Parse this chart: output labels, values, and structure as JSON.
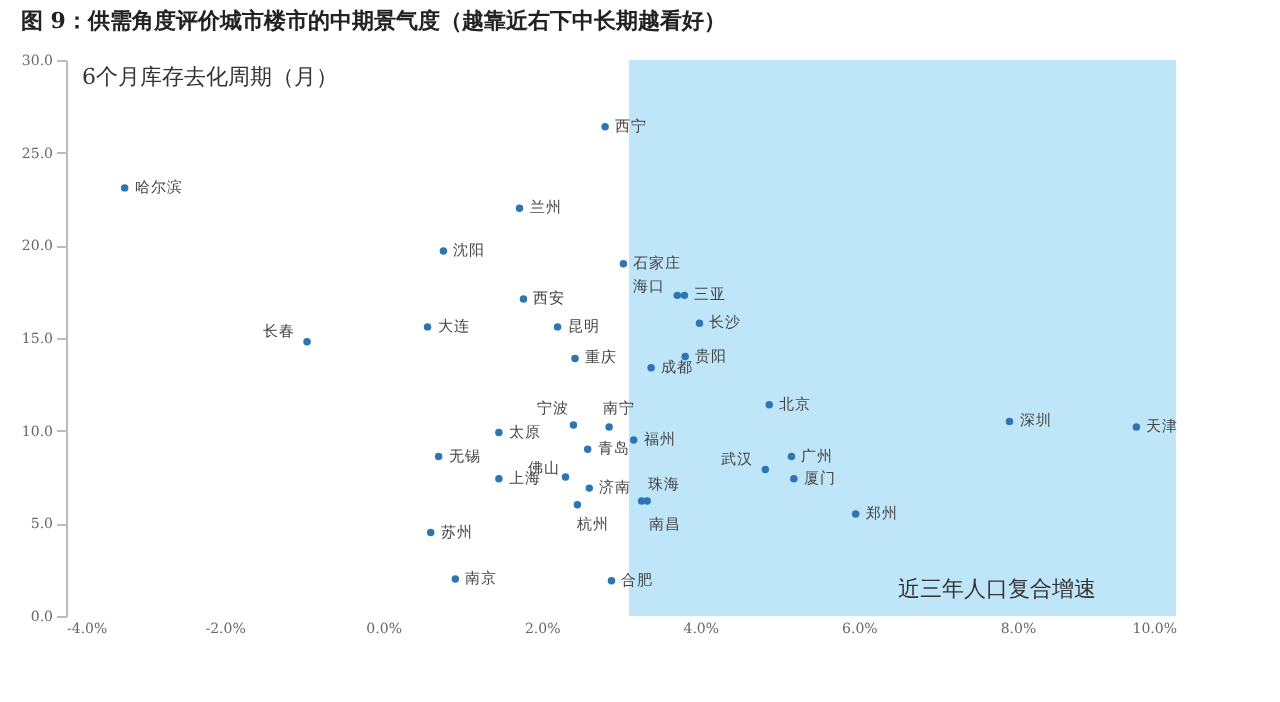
{
  "chart_data": {
    "type": "scatter",
    "title": "图 9：供需角度评价城市楼市的中期景气度（越靠近右下中长期越看好）",
    "xlabel": "近三年人口复合增速",
    "ylabel": "6个月库存去化周期（月）",
    "series": [
      {
        "color": "#2e75b6",
        "x": [
          -3.26,
          -0.96,
          0.56,
          0.76,
          1.72,
          1.77,
          2.2,
          2.42,
          2.8,
          3.03,
          3.71,
          3.8,
          3.99,
          3.81,
          3.38,
          4.87,
          2.4,
          2.85,
          3.16,
          1.46,
          0.7,
          2.58,
          2.3,
          1.46,
          2.6,
          2.45,
          0.6,
          0.91,
          2.88,
          3.26,
          3.33,
          4.82,
          5.15,
          5.18,
          5.96,
          7.9,
          9.5
        ],
        "values": [
          23.1,
          14.8,
          15.6,
          19.7,
          22.0,
          17.1,
          15.6,
          13.9,
          26.4,
          19.0,
          17.3,
          17.3,
          15.8,
          14.0,
          13.4,
          11.4,
          10.3,
          10.2,
          9.5,
          9.9,
          8.6,
          9.0,
          7.5,
          7.4,
          6.9,
          6.0,
          4.5,
          2.0,
          1.9,
          6.2,
          6.2,
          7.9,
          8.6,
          7.4,
          5.5,
          10.5,
          10.2
        ]
      }
    ],
    "annotations": [
      {
        "text": "哈尔滨",
        "x": -3.26,
        "y": 23.1
      },
      {
        "text": "长春",
        "x": -0.96,
        "y": 14.8
      },
      {
        "text": "大连",
        "x": 0.56,
        "y": 15.6
      },
      {
        "text": "沈阳",
        "x": 0.76,
        "y": 19.7
      },
      {
        "text": "兰州",
        "x": 1.72,
        "y": 22.0
      },
      {
        "text": "西安",
        "x": 1.77,
        "y": 17.1
      },
      {
        "text": "昆明",
        "x": 2.2,
        "y": 15.6
      },
      {
        "text": "重庆",
        "x": 2.42,
        "y": 13.9
      },
      {
        "text": "西宁",
        "x": 2.8,
        "y": 26.4
      },
      {
        "text": "石家庄",
        "x": 3.03,
        "y": 19.0
      },
      {
        "text": "海口",
        "x": 3.71,
        "y": 17.3
      },
      {
        "text": "三亚",
        "x": 3.8,
        "y": 17.3
      },
      {
        "text": "长沙",
        "x": 3.99,
        "y": 15.8
      },
      {
        "text": "贵阳",
        "x": 3.81,
        "y": 14.0
      },
      {
        "text": "成都",
        "x": 3.38,
        "y": 13.4
      },
      {
        "text": "北京",
        "x": 4.87,
        "y": 11.4
      },
      {
        "text": "宁波",
        "x": 2.4,
        "y": 10.3
      },
      {
        "text": "南宁",
        "x": 2.85,
        "y": 10.2
      },
      {
        "text": "福州",
        "x": 3.16,
        "y": 9.5
      },
      {
        "text": "太原",
        "x": 1.46,
        "y": 9.9
      },
      {
        "text": "无锡",
        "x": 0.7,
        "y": 8.6
      },
      {
        "text": "青岛",
        "x": 2.58,
        "y": 9.0
      },
      {
        "text": "佛山",
        "x": 2.3,
        "y": 7.5
      },
      {
        "text": "上海",
        "x": 1.46,
        "y": 7.4
      },
      {
        "text": "济南",
        "x": 2.6,
        "y": 6.9
      },
      {
        "text": "杭州",
        "x": 2.45,
        "y": 6.0
      },
      {
        "text": "苏州",
        "x": 0.6,
        "y": 4.5
      },
      {
        "text": "南京",
        "x": 0.91,
        "y": 2.0
      },
      {
        "text": "合肥",
        "x": 2.88,
        "y": 1.9
      },
      {
        "text": "珠海",
        "x": 3.26,
        "y": 6.2
      },
      {
        "text": "南昌",
        "x": 3.33,
        "y": 6.2
      },
      {
        "text": "武汉",
        "x": 4.82,
        "y": 7.9
      },
      {
        "text": "广州",
        "x": 5.15,
        "y": 8.6
      },
      {
        "text": "厦门",
        "x": 5.18,
        "y": 7.4
      },
      {
        "text": "郑州",
        "x": 5.96,
        "y": 5.5
      },
      {
        "text": "深圳",
        "x": 7.9,
        "y": 10.5
      },
      {
        "text": "天津",
        "x": 9.5,
        "y": 10.2
      }
    ],
    "bands": [
      {
        "axis": "x",
        "from": 3.1,
        "to": 10,
        "color": "#bfe6f8"
      }
    ],
    "xlim": [
      -4,
      10
    ],
    "xticks": [
      {
        "value": -4,
        "label": "-4.0%"
      },
      {
        "value": -2,
        "label": "-2.0%"
      },
      {
        "value": 0,
        "label": "0.0%"
      },
      {
        "value": 2,
        "label": "2.0%"
      },
      {
        "value": 4,
        "label": "4.0%"
      },
      {
        "value": 6,
        "label": "6.0%"
      },
      {
        "value": 8,
        "label": "8.0%"
      },
      {
        "value": 10,
        "label": "10.0%"
      }
    ],
    "ylim": [
      0,
      30
    ],
    "yticks": [
      {
        "value": 0,
        "label": "0.0"
      },
      {
        "value": 5,
        "label": "5.0"
      },
      {
        "value": 10,
        "label": "10.0"
      },
      {
        "value": 15,
        "label": "15.0"
      },
      {
        "value": 20,
        "label": "20.0"
      },
      {
        "value": 25,
        "label": "25.0"
      },
      {
        "value": 30,
        "label": "30.0"
      }
    ],
    "grid": false
  }
}
